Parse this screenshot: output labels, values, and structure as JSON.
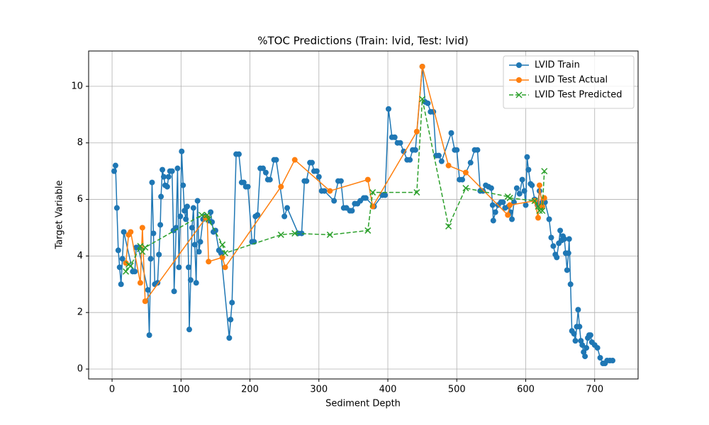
{
  "chart_data": {
    "type": "line",
    "title": "%TOC Predictions (Train: lvid, Test: lvid)",
    "xlabel": "Sediment Depth",
    "ylabel": "Target Variable",
    "xlim": [
      -34,
      763
    ],
    "ylim": [
      -0.35,
      11.25
    ],
    "xticks": [
      0,
      100,
      200,
      300,
      400,
      500,
      600,
      700
    ],
    "yticks": [
      0,
      2,
      4,
      6,
      8,
      10
    ],
    "grid": true,
    "legend": "upper right",
    "series": [
      {
        "name": "LVID Train",
        "color": "#1f77b4",
        "linestyle": "solid",
        "marker": "o",
        "x": [
          3,
          5,
          7,
          9,
          11,
          13,
          15,
          17,
          30,
          33,
          35,
          38,
          52,
          54,
          56,
          58,
          60,
          62,
          66,
          68,
          70,
          71,
          73,
          75,
          77,
          80,
          82,
          84,
          87,
          89,
          90,
          93,
          95,
          97,
          99,
          101,
          103,
          105,
          107,
          109,
          111,
          112,
          114,
          116,
          118,
          120,
          122,
          124,
          126,
          128,
          132,
          135,
          140,
          143,
          145,
          147,
          150,
          155,
          158,
          170,
          172,
          174,
          180,
          184,
          188,
          191,
          194,
          197,
          203,
          206,
          208,
          211,
          215,
          219,
          223,
          226,
          229,
          235,
          238,
          250,
          254,
          270,
          275,
          279,
          282,
          287,
          290,
          293,
          297,
          300,
          304,
          308,
          322,
          328,
          332,
          336,
          340,
          345,
          348,
          352,
          356,
          360,
          365,
          368,
          380,
          392,
          396,
          401,
          406,
          410,
          414,
          418,
          423,
          428,
          432,
          436,
          440,
          450,
          454,
          458,
          462,
          466,
          470,
          474,
          478,
          492,
          497,
          500,
          504,
          508,
          520,
          526,
          530,
          534,
          538,
          542,
          546,
          550,
          552,
          553,
          556,
          560,
          564,
          567,
          570,
          575,
          578,
          580,
          583,
          587,
          591,
          595,
          598,
          600,
          602,
          604,
          607,
          609,
          613,
          617,
          620,
          624,
          628,
          634,
          637,
          640,
          643,
          645,
          648,
          650,
          652,
          654,
          656,
          658,
          660,
          662,
          663,
          665,
          667,
          670,
          672,
          674,
          676,
          678,
          680,
          682,
          684,
          686,
          688,
          690,
          692,
          694,
          696,
          700,
          704,
          708,
          712,
          715,
          718,
          722,
          726
        ],
        "values": [
          7.0,
          7.2,
          5.7,
          4.2,
          3.6,
          3.0,
          3.9,
          4.85,
          3.45,
          3.45,
          4.3,
          4.3,
          2.8,
          1.2,
          3.9,
          6.6,
          4.8,
          3.0,
          3.05,
          4.05,
          5.1,
          6.1,
          7.05,
          6.8,
          6.5,
          6.45,
          6.8,
          7.0,
          7.0,
          4.9,
          2.75,
          5.0,
          7.1,
          3.6,
          5.4,
          7.7,
          6.5,
          5.6,
          5.3,
          5.75,
          3.6,
          1.4,
          3.15,
          5.0,
          5.7,
          4.4,
          3.05,
          5.95,
          4.15,
          4.5,
          5.3,
          5.4,
          5.25,
          5.55,
          5.2,
          4.85,
          4.9,
          4.2,
          4.1,
          1.1,
          1.75,
          2.35,
          7.6,
          7.6,
          6.6,
          6.6,
          6.45,
          6.45,
          4.5,
          4.5,
          5.4,
          5.45,
          7.1,
          7.1,
          6.95,
          6.7,
          6.7,
          7.4,
          7.4,
          5.4,
          5.7,
          4.8,
          4.8,
          6.65,
          6.65,
          7.3,
          7.3,
          7.0,
          7.0,
          6.8,
          6.3,
          6.3,
          5.95,
          6.65,
          6.65,
          5.7,
          5.7,
          5.6,
          5.6,
          5.85,
          5.85,
          5.95,
          6.05,
          6.05,
          5.75,
          6.15,
          6.15,
          9.2,
          8.2,
          8.2,
          8.0,
          8.0,
          7.7,
          7.4,
          7.4,
          7.75,
          7.75,
          10.7,
          9.45,
          9.4,
          9.1,
          9.1,
          7.55,
          7.55,
          7.35,
          8.35,
          7.75,
          7.75,
          6.7,
          6.7,
          7.3,
          7.75,
          7.75,
          6.3,
          6.3,
          6.5,
          6.45,
          6.4,
          5.8,
          5.25,
          5.55,
          5.8,
          5.9,
          5.9,
          5.7,
          5.75,
          5.55,
          5.3,
          5.9,
          6.4,
          6.2,
          6.7,
          6.3,
          5.8,
          7.5,
          7.05,
          6.55,
          6.5,
          6.0,
          5.8,
          6.3,
          5.9,
          5.9,
          5.3,
          4.65,
          4.35,
          4.05,
          3.95,
          4.45,
          4.9,
          4.55,
          4.7,
          4.6,
          4.1,
          3.5,
          4.1,
          4.6,
          3.0,
          1.35,
          1.25,
          1.0,
          1.5,
          2.1,
          1.5,
          1.0,
          0.85,
          0.6,
          0.45,
          0.75,
          1.1,
          1.2,
          1.2,
          0.95,
          0.85,
          0.75,
          0.4,
          0.2,
          0.2,
          0.3,
          0.3,
          0.3
        ]
      },
      {
        "name": "LVID Test Actual",
        "color": "#ff7f0e",
        "linestyle": "solid",
        "marker": "o",
        "x": [
          20,
          24,
          27,
          41,
          44,
          48,
          136,
          138,
          140,
          160,
          164,
          245,
          265,
          316,
          371,
          378,
          442,
          450,
          488,
          513,
          574,
          577,
          613,
          618,
          620,
          624,
          627
        ],
        "values": [
          3.75,
          4.75,
          4.85,
          3.05,
          5.0,
          2.4,
          5.35,
          5.35,
          3.8,
          3.95,
          3.6,
          6.45,
          7.4,
          6.3,
          6.7,
          5.75,
          8.4,
          10.7,
          7.2,
          6.95,
          5.45,
          5.8,
          5.95,
          5.35,
          6.5,
          5.75,
          6.05
        ]
      },
      {
        "name": "LVID Test Predicted",
        "color": "#2ca02c",
        "linestyle": "dashed",
        "marker": "x",
        "x": [
          20,
          24,
          27,
          41,
          44,
          48,
          130,
          138,
          140,
          160,
          164,
          245,
          265,
          316,
          371,
          378,
          442,
          450,
          488,
          513,
          574,
          577,
          613,
          618,
          620,
          624,
          627
        ],
        "values": [
          3.45,
          3.7,
          3.65,
          4.35,
          4.15,
          4.3,
          5.45,
          5.45,
          5.3,
          4.4,
          4.1,
          4.75,
          4.8,
          4.75,
          4.9,
          6.25,
          6.25,
          9.55,
          5.05,
          6.4,
          6.1,
          6.05,
          5.95,
          5.75,
          5.6,
          5.6,
          7.0
        ]
      }
    ]
  }
}
